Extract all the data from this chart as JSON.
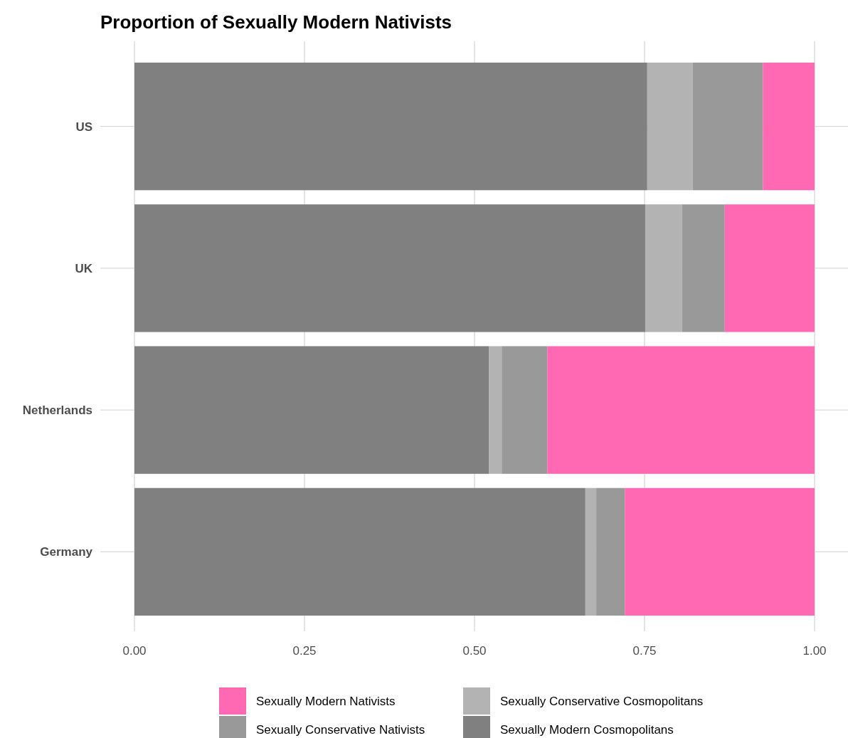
{
  "chart_data": {
    "type": "bar",
    "orientation": "horizontal",
    "stacked": true,
    "title": "Proportion of Sexually Modern Nativists",
    "categories": [
      "US",
      "UK",
      "Netherlands",
      "Germany"
    ],
    "series": [
      {
        "name": "Sexually Modern Cosmopolitans",
        "color": "#808080",
        "values": [
          0.754,
          0.751,
          0.521,
          0.663
        ]
      },
      {
        "name": "Sexually Conservative Cosmopolitans",
        "color": "#b3b3b3",
        "values": [
          0.067,
          0.054,
          0.019,
          0.016
        ]
      },
      {
        "name": "Sexually Conservative Nativists",
        "color": "#999999",
        "values": [
          0.103,
          0.063,
          0.067,
          0.042
        ]
      },
      {
        "name": "Sexually Modern Nativists",
        "color": "#ff69b4",
        "values": [
          0.076,
          0.132,
          0.393,
          0.279
        ]
      }
    ],
    "xlim": [
      0,
      1
    ],
    "xticks": [
      {
        "value": 0,
        "label": "0.00"
      },
      {
        "value": 0.25,
        "label": "0.25"
      },
      {
        "value": 0.5,
        "label": "0.50"
      },
      {
        "value": 0.75,
        "label": "0.75"
      },
      {
        "value": 1,
        "label": "1.00"
      }
    ],
    "grid": true,
    "legend": "bottom"
  }
}
